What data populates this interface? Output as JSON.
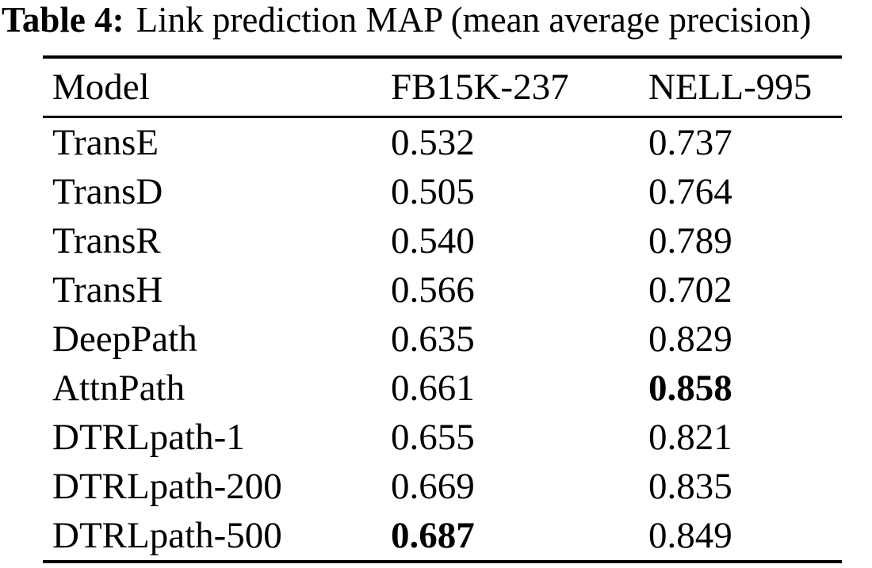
{
  "caption": {
    "label": "Table 4:",
    "text": "Link prediction MAP (mean average precision)"
  },
  "table": {
    "columns": [
      "Model",
      "FB15K-237",
      "NELL-995"
    ],
    "rows": [
      {
        "model": "TransE",
        "values": [
          "0.532",
          "0.737"
        ],
        "bold": []
      },
      {
        "model": "TransD",
        "values": [
          "0.505",
          "0.764"
        ],
        "bold": []
      },
      {
        "model": "TransR",
        "values": [
          "0.540",
          "0.789"
        ],
        "bold": []
      },
      {
        "model": "TransH",
        "values": [
          "0.566",
          "0.702"
        ],
        "bold": []
      },
      {
        "model": "DeepPath",
        "values": [
          "0.635",
          "0.829"
        ],
        "bold": []
      },
      {
        "model": "AttnPath",
        "values": [
          "0.661",
          "0.858"
        ],
        "bold": [
          1
        ]
      },
      {
        "model": "DTRLpath-1",
        "values": [
          "0.655",
          "0.821"
        ],
        "bold": []
      },
      {
        "model": "DTRLpath-200",
        "values": [
          "0.669",
          "0.835"
        ],
        "bold": []
      },
      {
        "model": "DTRLpath-500",
        "values": [
          "0.687",
          "0.849"
        ],
        "bold": [
          0
        ]
      }
    ]
  },
  "colors": {
    "text": "#000000",
    "background": "#ffffff",
    "rule": "#000000"
  },
  "chart_data": {
    "type": "table",
    "title": "Table 4: Link prediction MAP (mean average precision)",
    "categories": [
      "TransE",
      "TransD",
      "TransR",
      "TransH",
      "DeepPath",
      "AttnPath",
      "DTRLpath-1",
      "DTRLpath-200",
      "DTRLpath-500"
    ],
    "series": [
      {
        "name": "FB15K-237",
        "values": [
          0.532,
          0.505,
          0.54,
          0.566,
          0.635,
          0.661,
          0.655,
          0.669,
          0.687
        ]
      },
      {
        "name": "NELL-995",
        "values": [
          0.737,
          0.764,
          0.789,
          0.702,
          0.829,
          0.858,
          0.821,
          0.835,
          0.849
        ]
      }
    ],
    "bold_best": [
      {
        "series": "FB15K-237",
        "category": "DTRLpath-500",
        "value": 0.687
      },
      {
        "series": "NELL-995",
        "category": "AttnPath",
        "value": 0.858
      }
    ]
  }
}
